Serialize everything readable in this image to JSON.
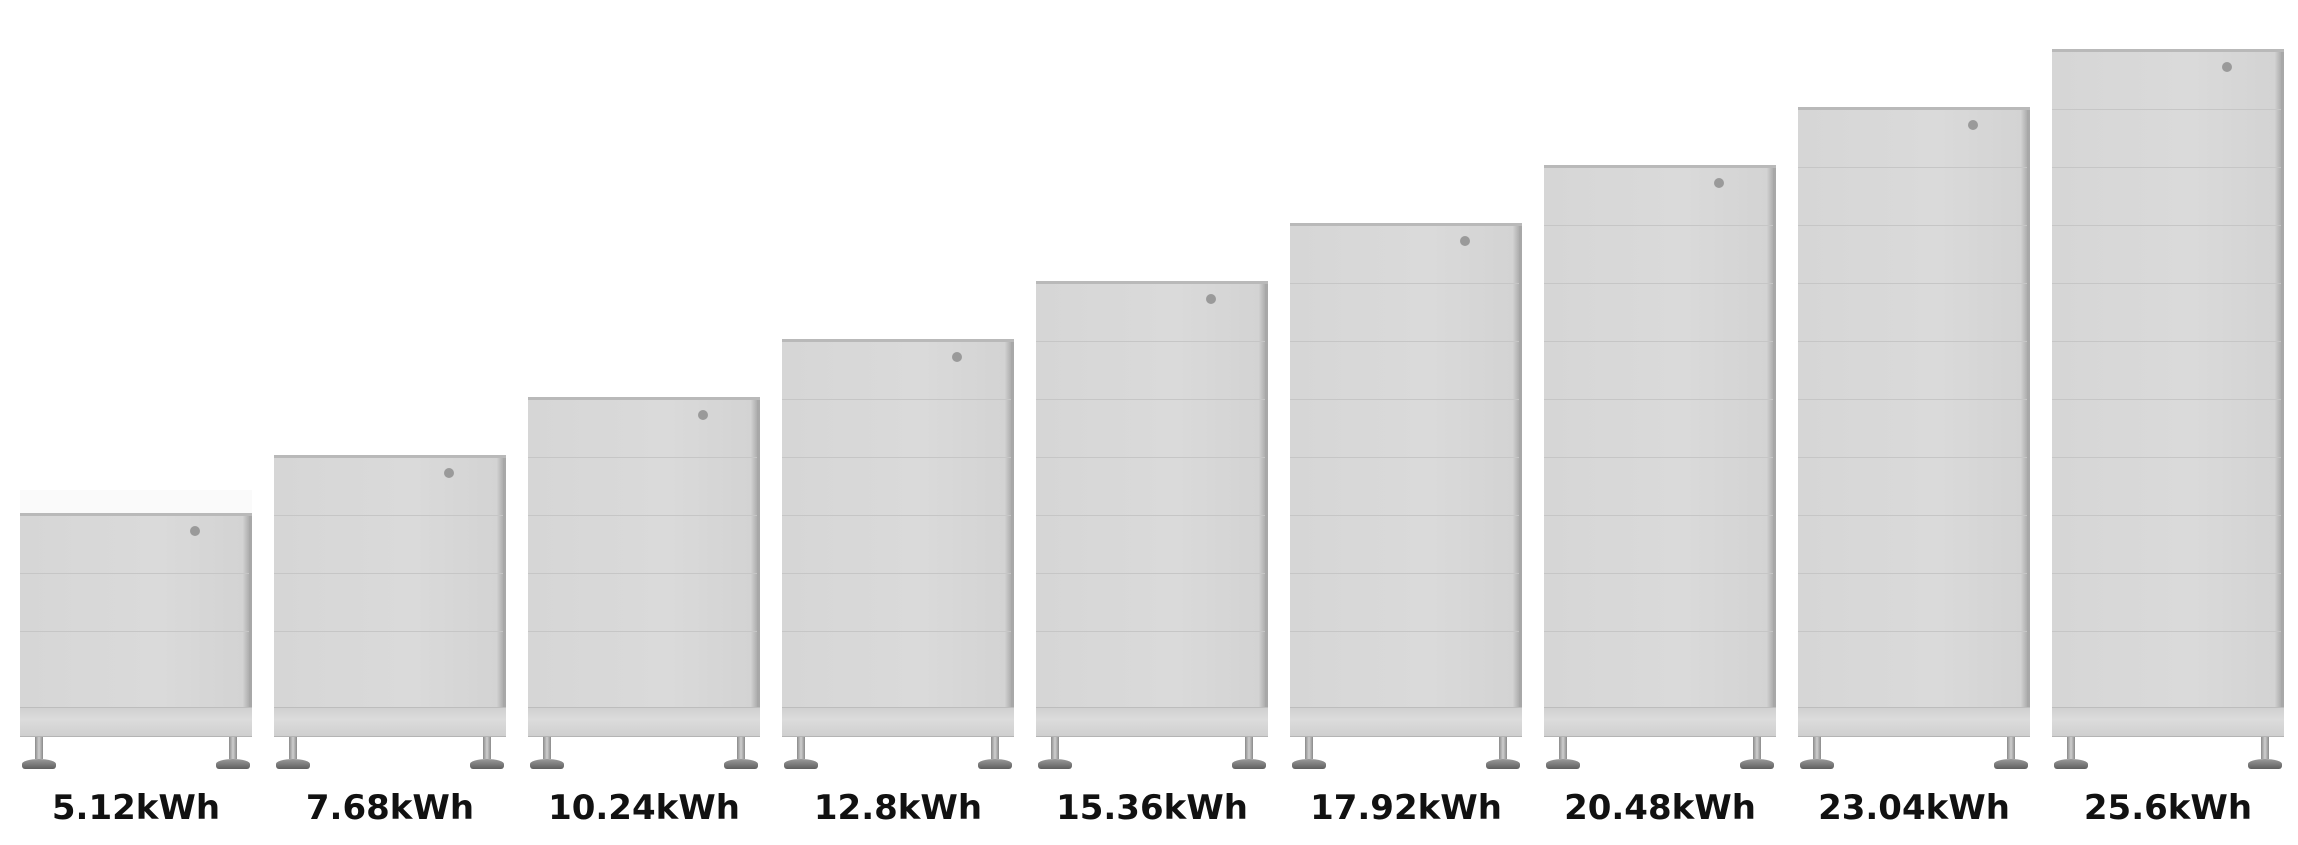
{
  "units": [
    {
      "label": "5.12kWh",
      "modules": 2
    },
    {
      "label": "7.68kWh",
      "modules": 3
    },
    {
      "label": "10.24kWh",
      "modules": 4
    },
    {
      "label": "12.8kWh",
      "modules": 5
    },
    {
      "label": "15.36kWh",
      "modules": 6
    },
    {
      "label": "17.92kWh",
      "modules": 7
    },
    {
      "label": "20.48kWh",
      "modules": 8
    },
    {
      "label": "23.04kWh",
      "modules": 9
    },
    {
      "label": "25.6kWh",
      "modules": 10
    }
  ]
}
